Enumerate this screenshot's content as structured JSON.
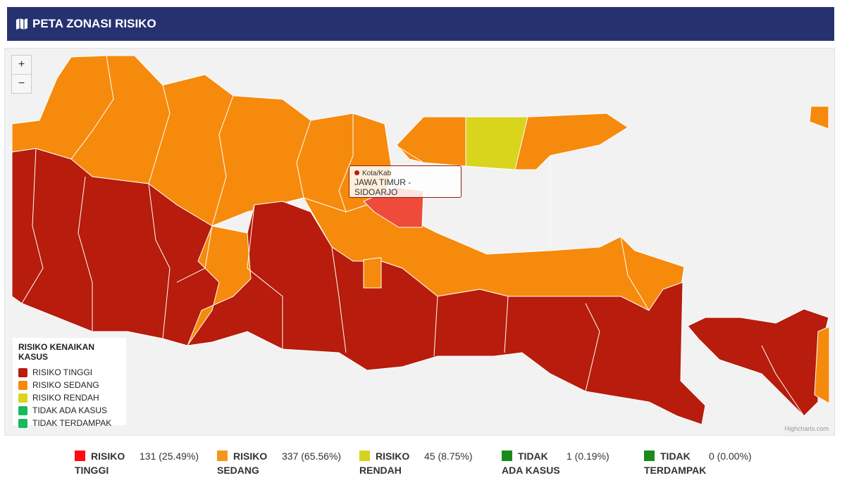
{
  "header": {
    "title": "PETA ZONASI RISIKO"
  },
  "map": {
    "zoom_in": "+",
    "zoom_out": "−",
    "credit": "Highcharts.com",
    "tooltip": {
      "series": "Kota/Kab",
      "label": "JAWA TIMUR - SIDOARJO"
    },
    "legend": {
      "title": "RISIKO KENAIKAN KASUS",
      "items": [
        {
          "label": "RISIKO TINGGI",
          "color": "#b71c0c"
        },
        {
          "label": "RISIKO SEDANG",
          "color": "#f68a0c"
        },
        {
          "label": "RISIKO RENDAH",
          "color": "#d9d41c"
        },
        {
          "label": "TIDAK ADA KASUS",
          "color": "#19b95c"
        },
        {
          "label": "TIDAK TERDAMPAK",
          "color": "#19b95c"
        }
      ]
    }
  },
  "summary": [
    {
      "label": "RISIKO TINGGI",
      "value": "131 (25.49%)",
      "color": "#ff0d0d"
    },
    {
      "label": "RISIKO SEDANG",
      "value": "337 (65.56%)",
      "color": "#f7961c"
    },
    {
      "label": "RISIKO RENDAH",
      "value": "45 (8.75%)",
      "color": "#d4d41f"
    },
    {
      "label": "TIDAK ADA KASUS",
      "value": "1 (0.19%)",
      "color": "#1a8a1a"
    },
    {
      "label": "TIDAK TERDAMPAK",
      "value": "0 (0.00%)",
      "color": "#1a8a1a"
    }
  ]
}
